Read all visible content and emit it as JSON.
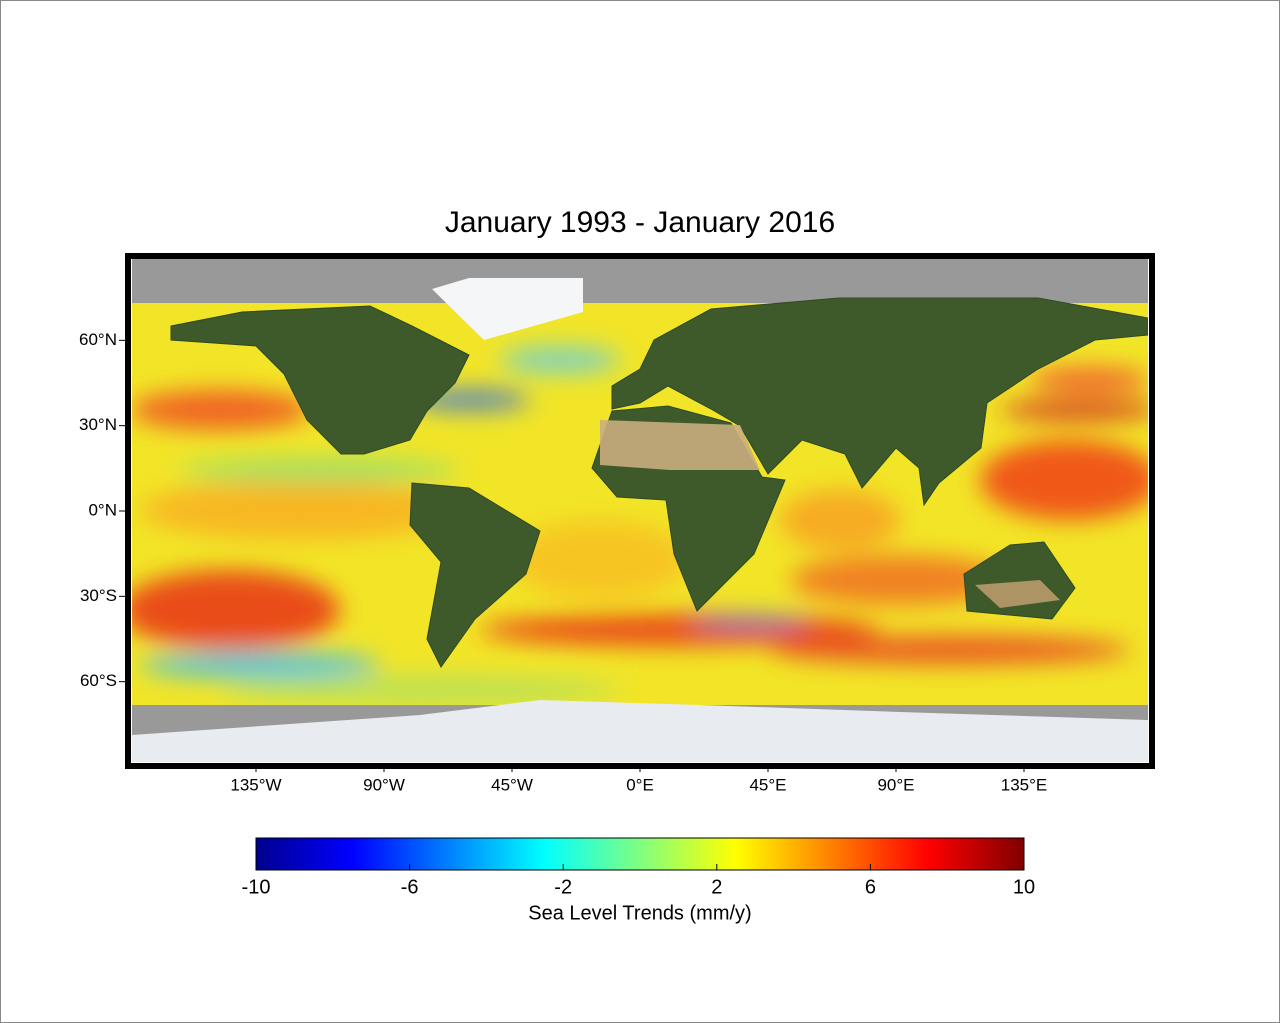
{
  "title": "January 1993 - January 2016",
  "map": {
    "xlim": [
      -180,
      180
    ],
    "ylim": [
      -90,
      90
    ],
    "xticks": [
      {
        "value": -135,
        "label": "135°W"
      },
      {
        "value": -90,
        "label": "90°W"
      },
      {
        "value": -45,
        "label": "45°W"
      },
      {
        "value": 0,
        "label": "0°E"
      },
      {
        "value": 45,
        "label": "45°E"
      },
      {
        "value": 90,
        "label": "90°E"
      },
      {
        "value": 135,
        "label": "135°E"
      }
    ],
    "yticks": [
      {
        "value": 60,
        "label": "60°N"
      },
      {
        "value": 30,
        "label": "30°N"
      },
      {
        "value": 0,
        "label": "0°N"
      },
      {
        "value": -30,
        "label": "30°S"
      },
      {
        "value": -60,
        "label": "60°S"
      }
    ]
  },
  "colorbar": {
    "label": "Sea Level Trends (mm/y)",
    "lim": [
      -10,
      10
    ],
    "ticks": [
      -10,
      -6,
      -2,
      2,
      6,
      10
    ]
  }
}
